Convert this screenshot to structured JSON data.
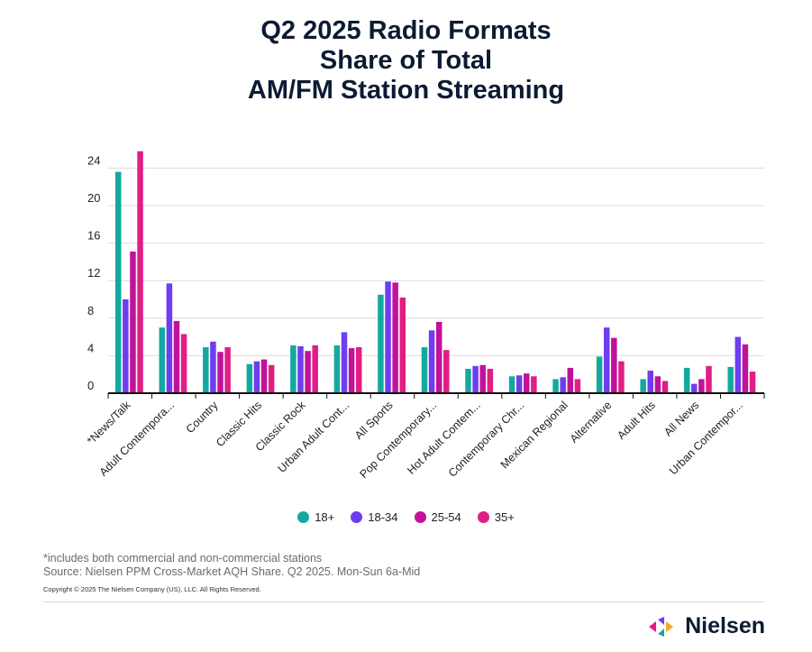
{
  "chart_data": {
    "type": "bar",
    "title": [
      "Q2 2025 Radio Formats",
      "Share of Total",
      "AM/FM Station Streaming"
    ],
    "xlabel": "",
    "ylabel": "",
    "ylim": [
      0,
      25
    ],
    "yticks": [
      0,
      4,
      8,
      12,
      16,
      20,
      24
    ],
    "grid": true,
    "legend_position": "bottom",
    "categories": [
      "*News/Talk",
      "Adult Contempora...",
      "Country",
      "Classic Hits",
      "Classic Rock",
      "Urban Adult Cont...",
      "All Sports",
      "Pop Contemporary...",
      "Hot Adult Contem...",
      "Contemporary Chr...",
      "Mexican Regional",
      "Alternative",
      "Adult Hits",
      "All News",
      "Urban Contempor..."
    ],
    "series": [
      {
        "name": "18+",
        "color": "#14a8a0",
        "values": [
          23.6,
          7.0,
          4.9,
          3.1,
          5.1,
          5.1,
          10.5,
          4.9,
          2.6,
          1.8,
          1.5,
          3.9,
          1.5,
          2.7,
          2.8
        ]
      },
      {
        "name": "18-34",
        "color": "#6e3df0",
        "values": [
          10.0,
          11.7,
          5.5,
          3.4,
          5.0,
          6.5,
          11.9,
          6.7,
          2.9,
          1.9,
          1.7,
          7.0,
          2.4,
          1.0,
          6.0
        ]
      },
      {
        "name": "25-54",
        "color": "#c0129a",
        "values": [
          15.1,
          7.7,
          4.4,
          3.6,
          4.5,
          4.8,
          11.8,
          7.6,
          3.0,
          2.1,
          2.7,
          5.9,
          1.8,
          1.5,
          5.2
        ]
      },
      {
        "name": "35+",
        "color": "#e01e86",
        "values": [
          25.8,
          6.3,
          4.9,
          3.0,
          5.1,
          4.9,
          10.2,
          4.6,
          2.6,
          1.8,
          1.5,
          3.4,
          1.3,
          2.9,
          2.3
        ]
      }
    ]
  },
  "footnote": {
    "line1": "*includes both commercial and non-commercial stations",
    "line2": "Source: Nielsen PPM Cross-Market AQH Share. Q2 2025. Mon-Sun 6a-Mid"
  },
  "copyright": "Copyright © 2025 The Nielsen Company (US), LLC. All Rights Reserved.",
  "brand": {
    "name": "Nielsen",
    "logo_colors": [
      "#e01e86",
      "#6e3df0",
      "#14a8a0",
      "#f5a623"
    ]
  }
}
